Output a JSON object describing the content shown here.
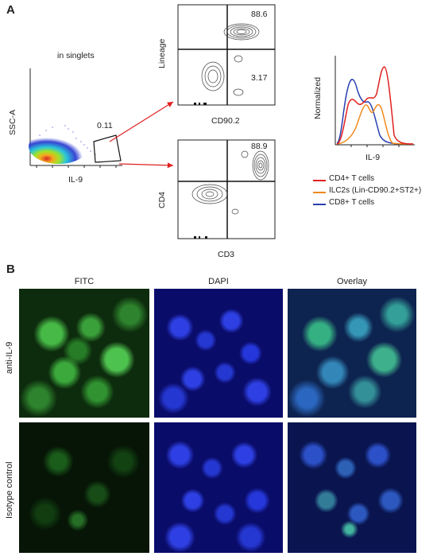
{
  "panelA": {
    "letter": "A",
    "singlets_label": "in singlets",
    "plot1": {
      "ylabel": "SSC-A",
      "xlabel": "IL-9",
      "gate_value": "0.11"
    },
    "plot2": {
      "ylabel": "Lineage",
      "xlabel": "CD90.2",
      "q_top_right": "88.6",
      "q_mid_right": "3.17"
    },
    "plot3": {
      "ylabel": "CD4",
      "xlabel": "CD3",
      "q_top_right": "88.9"
    },
    "histogram": {
      "ylabel": "Normalized",
      "xlabel": "IL-9"
    },
    "legend": [
      {
        "label": "CD4+ T cells",
        "color": "#e02020"
      },
      {
        "label": "ILC2s (Lin-CD90.2+ST2+)",
        "color": "#f08a1c"
      },
      {
        "label": "CD8+ T cells",
        "color": "#2a3fb0"
      }
    ]
  },
  "panelB": {
    "letter": "B",
    "columns": [
      "FITC",
      "DAPI",
      "Overlay"
    ],
    "rows": [
      "anti-IL-9",
      "Isotype control"
    ]
  },
  "colors": {
    "arrow": "#e02020",
    "fitc": "#2fbf2f",
    "dapi": "#1f30d8"
  }
}
